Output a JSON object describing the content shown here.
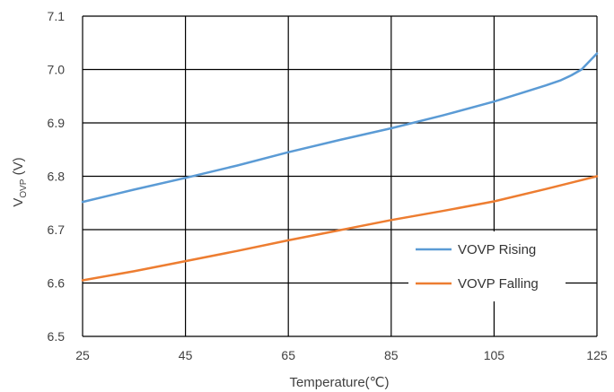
{
  "chart_data": {
    "type": "line",
    "xlabel": "Temperature(℃)",
    "ylabel": {
      "main": "V",
      "subscript": "OVP",
      "unit": " (V)"
    },
    "xlim": [
      25,
      125
    ],
    "ylim": [
      6.5,
      7.1
    ],
    "xticks": [
      "25",
      "45",
      "65",
      "85",
      "105",
      "125"
    ],
    "yticks": [
      "6.5",
      "6.6",
      "6.7",
      "6.8",
      "6.9",
      "7.0",
      "7.1"
    ],
    "grid": true,
    "legend_position": "bottom-right",
    "series": [
      {
        "name": "VOVP Rising",
        "color": "#5b9bd5",
        "x": [
          25,
          35,
          45,
          55,
          65,
          75,
          85,
          95,
          105,
          110,
          115,
          118,
          120,
          122,
          125
        ],
        "y": [
          6.752,
          6.775,
          6.797,
          6.82,
          6.845,
          6.868,
          6.89,
          6.914,
          6.94,
          6.955,
          6.97,
          6.98,
          6.989,
          7.0,
          7.03
        ]
      },
      {
        "name": "VOVP Falling",
        "color": "#ed7d31",
        "x": [
          25,
          35,
          45,
          55,
          65,
          75,
          85,
          95,
          105,
          115,
          125
        ],
        "y": [
          6.605,
          6.622,
          6.641,
          6.66,
          6.68,
          6.699,
          6.718,
          6.735,
          6.753,
          6.776,
          6.8
        ]
      }
    ]
  }
}
